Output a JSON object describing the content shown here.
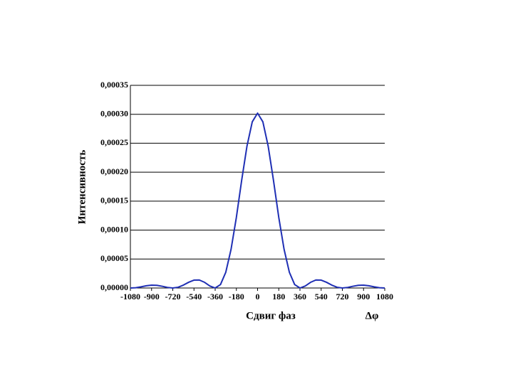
{
  "chart_data": {
    "type": "line",
    "x_label": "Сдвиг фаз",
    "x_annotation": "Δφ",
    "y_label": "Интенсивность",
    "series": [
      {
        "color": "#1f2fb4",
        "x": [
          -1080,
          -1035,
          -990,
          -945,
          -900,
          -855,
          -810,
          -765,
          -720,
          -675,
          -630,
          -585,
          -540,
          -495,
          -450,
          -405,
          -360,
          -315,
          -270,
          -225,
          -180,
          -135,
          -90,
          -45,
          0,
          45,
          90,
          135,
          180,
          225,
          270,
          315,
          360,
          405,
          450,
          495,
          540,
          585,
          630,
          675,
          720,
          765,
          810,
          855,
          900,
          945,
          990,
          1035,
          1080
        ],
        "values": [
          0,
          5e-07,
          2e-06,
          3.8e-06,
          4.9e-06,
          4.6e-06,
          3e-06,
          1e-06,
          0,
          1.3e-06,
          5e-06,
          9.9e-06,
          1.36e-05,
          1.38e-05,
          9.8e-06,
          3.5e-06,
          0,
          5.9e-06,
          2.72e-05,
          6.69e-05,
          0.000122,
          0.000186,
          0.000245,
          0.000287,
          0.000302,
          0.000287,
          0.000245,
          0.000186,
          0.000122,
          6.69e-05,
          2.72e-05,
          5.9e-06,
          0,
          3.5e-06,
          9.8e-06,
          1.38e-05,
          1.36e-05,
          9.9e-06,
          5e-06,
          1.3e-06,
          0,
          1e-06,
          3e-06,
          4.6e-06,
          4.9e-06,
          3.8e-06,
          2e-06,
          5e-07,
          0
        ]
      }
    ],
    "xlim": [
      -1080,
      1080
    ],
    "xticks": [
      -1080,
      -900,
      -720,
      -540,
      -360,
      -180,
      0,
      180,
      360,
      540,
      720,
      900,
      1080
    ],
    "ylim": [
      0,
      0.00035
    ],
    "yticks": [
      {
        "value": 0,
        "label": "0,00000"
      },
      {
        "value": 5e-05,
        "label": "0,00005"
      },
      {
        "value": 0.0001,
        "label": "0,00010"
      },
      {
        "value": 0.00015,
        "label": "0,00015"
      },
      {
        "value": 0.0002,
        "label": "0,00020"
      },
      {
        "value": 0.00025,
        "label": "0,00025"
      },
      {
        "value": 0.0003,
        "label": "0,00030"
      },
      {
        "value": 0.00035,
        "label": "0,00035"
      }
    ],
    "grid": true
  }
}
